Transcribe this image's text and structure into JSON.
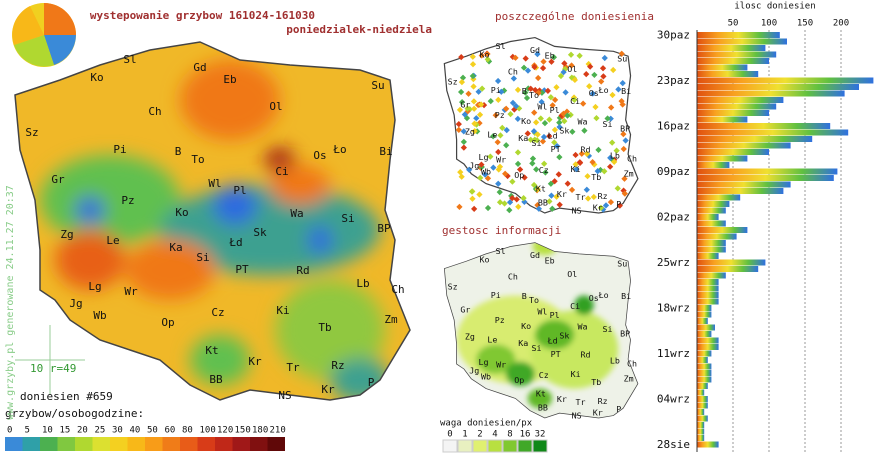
{
  "header": {
    "title": "wystepowanie grzybow 161024-161030",
    "subtitle": "poniedzialek-niedziela"
  },
  "watermark": "www.grzyby.pl generowane 24.11.27 20:37",
  "main_map": {
    "cities": [
      "Sl",
      "Gd",
      "Ko",
      "Eb",
      "Su",
      "Ch",
      "Ol",
      "Sz",
      "Pi",
      "B",
      "To",
      "Os",
      "Ło",
      "Bi",
      "Gr",
      "Ci",
      "Wl",
      "Pl",
      "Pz",
      "Ko",
      "Wa",
      "Si",
      "Zg",
      "Le",
      "Sk",
      "Łd",
      "BP",
      "Ka",
      "Si",
      "PT",
      "Rd",
      "Lb",
      "Lg",
      "Wr",
      "Ch",
      "Jg",
      "Wb",
      "Op",
      "Cz",
      "Ki",
      "Zm",
      "Tb",
      "Kt",
      "Kr",
      "Rz",
      "Tr",
      "BB",
      "Kr",
      "P",
      "NS"
    ],
    "scale_note": "10 r=49",
    "count": "doniesien #659"
  },
  "legend": {
    "title": "grzybow/osobogodzine:",
    "ticks": [
      0,
      5,
      10,
      15,
      20,
      25,
      30,
      40,
      50,
      60,
      80,
      100,
      120,
      150,
      180,
      210
    ],
    "colors": [
      "#3a8ad8",
      "#2fa0a8",
      "#4cb050",
      "#80c840",
      "#b0d830",
      "#dce030",
      "#f4d020",
      "#f8b818",
      "#f89c18",
      "#f07c18",
      "#e85c18",
      "#d83c18",
      "#c02818",
      "#a01818",
      "#801010",
      "#600808"
    ]
  },
  "points_map": {
    "title": "poszczególne doniesienia"
  },
  "density_map": {
    "title": "gestosc informacji",
    "legend_title": "waga doniesien/px",
    "ticks": [
      0,
      1,
      2,
      4,
      8,
      16,
      32
    ],
    "colors": [
      "#f4f4f4",
      "#e8f0c0",
      "#e0f070",
      "#b8e040",
      "#80c830",
      "#40a828",
      "#108818"
    ]
  },
  "chart_data": {
    "type": "bar",
    "orientation": "horizontal",
    "title": "ilosc doniesien",
    "categories": [
      "30paz",
      null,
      null,
      null,
      null,
      null,
      null,
      "23paz",
      null,
      null,
      null,
      null,
      null,
      null,
      "16paz",
      null,
      null,
      null,
      null,
      null,
      null,
      "09paz",
      null,
      null,
      null,
      null,
      null,
      null,
      "02paz",
      null,
      null,
      null,
      null,
      null,
      null,
      "25wrz",
      null,
      null,
      null,
      null,
      null,
      null,
      "18wrz",
      null,
      null,
      null,
      null,
      null,
      null,
      "11wrz",
      null,
      null,
      null,
      null,
      null,
      null,
      "04wrz",
      null,
      null,
      null,
      null,
      null,
      null,
      "28sie"
    ],
    "values": [
      115,
      125,
      95,
      110,
      100,
      70,
      85,
      245,
      225,
      205,
      120,
      110,
      100,
      70,
      185,
      210,
      160,
      130,
      100,
      70,
      45,
      195,
      190,
      130,
      120,
      60,
      45,
      40,
      30,
      40,
      70,
      55,
      40,
      40,
      30,
      95,
      85,
      40,
      30,
      30,
      30,
      30,
      20,
      20,
      15,
      25,
      20,
      30,
      30,
      20,
      15,
      20,
      20,
      20,
      15,
      10,
      15,
      15,
      10,
      15,
      10,
      10,
      10,
      30
    ],
    "xlim": [
      0,
      250
    ],
    "xticks": [
      50,
      100,
      150,
      200
    ],
    "grid": true,
    "colors": [
      "#e05010",
      "#f8a020",
      "#f0e030",
      "#60c040",
      "#2f70e0"
    ]
  }
}
